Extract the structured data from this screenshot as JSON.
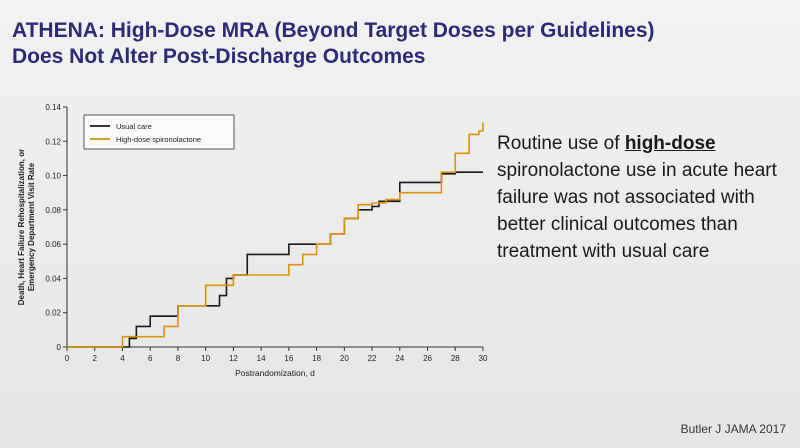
{
  "slide": {
    "title_line1": "ATHENA: High-Dose MRA (Beyond Target Doses per Guidelines)",
    "title_line2": "Does Not Alter Post-Discharge Outcomes",
    "text_before": "Routine use of ",
    "text_emphasis": "high-dose",
    "text_after": " spironolactone use in acute heart failure was not associated with better clinical outcomes than treatment with usual care",
    "citation": "Butler J JAMA 2017"
  },
  "colors": {
    "title": "#2e2a78",
    "usual_care": "#1a1a1a",
    "high_dose": "#d9930b"
  },
  "chart_data": {
    "type": "line",
    "step": true,
    "xlabel": "Postrandomization, d",
    "ylabel": "Death, Heart Failure Rehospitalization, or Emergency Department Visit Rate",
    "xlim": [
      0,
      30
    ],
    "ylim": [
      0,
      0.14
    ],
    "xticks": [
      0,
      2,
      4,
      6,
      8,
      10,
      12,
      14,
      16,
      18,
      20,
      22,
      24,
      26,
      28,
      30
    ],
    "yticks": [
      0,
      0.02,
      0.04,
      0.06,
      0.08,
      0.1,
      0.12,
      0.14
    ],
    "ytick_labels": [
      "0",
      "0.02",
      "0.04",
      "0.06",
      "0.08",
      "0.10",
      "0.12",
      "0.14"
    ],
    "grid": false,
    "legend": "top-left",
    "series": [
      {
        "name": "Usual care",
        "color": "#1a1a1a",
        "x": [
          0,
          4.5,
          5,
          6,
          8,
          11,
          11.5,
          12,
          13,
          16,
          19,
          20,
          21,
          22,
          22.5,
          24,
          27,
          28,
          30
        ],
        "y": [
          0,
          0.005,
          0.012,
          0.018,
          0.024,
          0.03,
          0.04,
          0.042,
          0.054,
          0.06,
          0.066,
          0.075,
          0.08,
          0.082,
          0.085,
          0.096,
          0.101,
          0.102,
          0.102
        ]
      },
      {
        "name": "High-dose spironolactone",
        "color": "#d9930b",
        "x": [
          0,
          4,
          7,
          8,
          10,
          12,
          16,
          17,
          18,
          19,
          20,
          21,
          22,
          23,
          24,
          27,
          28,
          29,
          29.7,
          30
        ],
        "y": [
          0,
          0.006,
          0.012,
          0.024,
          0.036,
          0.042,
          0.048,
          0.054,
          0.06,
          0.066,
          0.075,
          0.083,
          0.084,
          0.086,
          0.09,
          0.102,
          0.113,
          0.124,
          0.126,
          0.131
        ]
      }
    ]
  }
}
